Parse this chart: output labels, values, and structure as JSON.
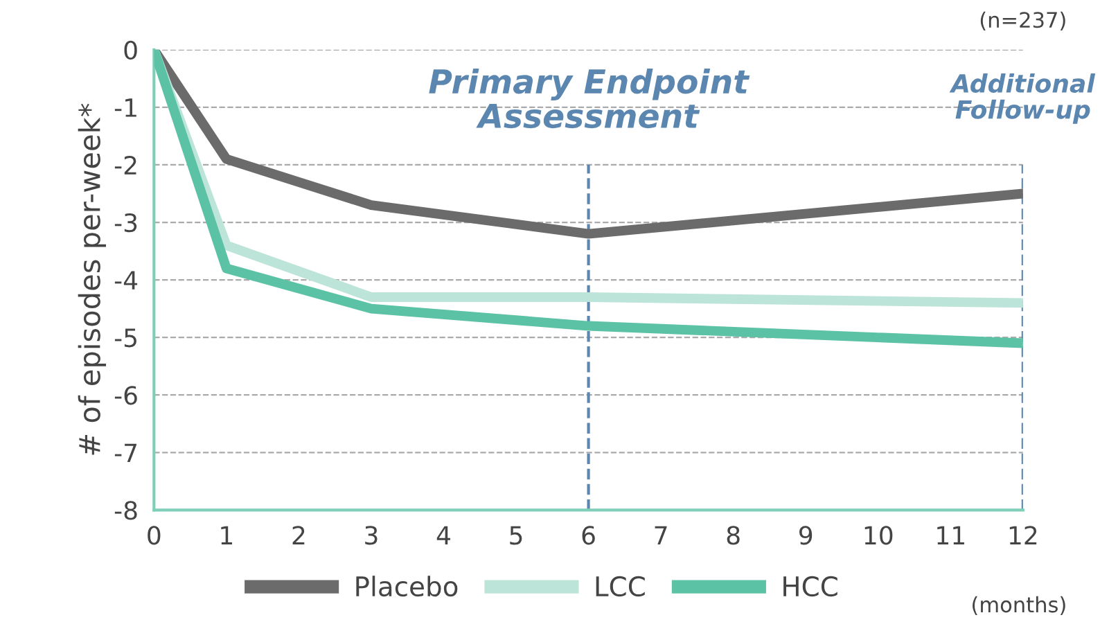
{
  "chart_data": {
    "type": "line",
    "ylabel": "# of episodes per-week*",
    "x": [
      0,
      1,
      3,
      6,
      12
    ],
    "series": [
      {
        "name": "Placebo",
        "color": "#6b6b6b",
        "values": [
          0,
          -1.9,
          -2.7,
          -3.2,
          -2.5
        ]
      },
      {
        "name": "LCC",
        "color": "#bde4d8",
        "values": [
          0,
          -3.4,
          -4.3,
          -4.3,
          -4.4
        ]
      },
      {
        "name": "HCC",
        "color": "#5cc2a5",
        "values": [
          0,
          -3.8,
          -4.5,
          -4.8,
          -5.1
        ]
      }
    ],
    "xlim": [
      0,
      12
    ],
    "xticks": [
      0,
      1,
      2,
      3,
      4,
      5,
      6,
      7,
      8,
      9,
      10,
      11,
      12
    ],
    "ylim": [
      -8,
      0
    ],
    "yticks": [
      -8,
      -7,
      -6,
      -5,
      -4,
      -3,
      -2,
      -1,
      0
    ],
    "ref_lines": [
      {
        "axis": "x",
        "value": 6,
        "label": "Primary Endpoint\nAssessment",
        "color": "#5b86b0",
        "line_style": "dashed"
      },
      {
        "axis": "x",
        "value": 12,
        "label": "Additional\nFollow-up",
        "color": "#5b86b0",
        "line_style": "dashed"
      }
    ],
    "annotations": [
      "(n=237)",
      "(months)"
    ],
    "grid": "y",
    "legend": "bottom",
    "marker": "none",
    "line_style": "solid"
  }
}
